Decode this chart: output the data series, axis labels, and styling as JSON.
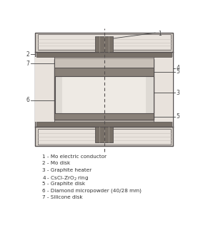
{
  "legend_items": [
    "1 - Mo electric conductor",
    "2 - Mo disk",
    "3 - Graphite heater",
    "4 - CsCl-ZrO₂ ring",
    "5 - Graphite disk",
    "6 - Diamond micropowder (40/28 mm)",
    "7 - Silicone disk"
  ],
  "c_bg": "#f2ede8",
  "c_outer": "#d8d2ca",
  "c_stripe": "#e8e2dc",
  "c_graphite": "#b8b0a8",
  "c_dark_g": "#888078",
  "c_mo": "#787068",
  "c_inner_bg": "#dedad4",
  "c_core": "#eeeae4",
  "c_silicone": "#c8c0b8",
  "c_white_gap": "#f0ece6",
  "lc": "#555050",
  "lw": 0.7
}
